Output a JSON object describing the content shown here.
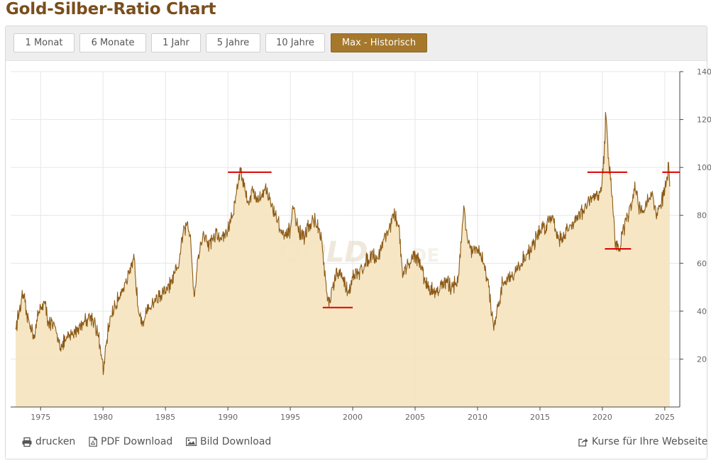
{
  "page": {
    "title": "Gold-Silber-Ratio Chart"
  },
  "toolbar": {
    "buttons": [
      {
        "label": "1 Monat",
        "active": false
      },
      {
        "label": "6 Monate",
        "active": false
      },
      {
        "label": "1 Jahr",
        "active": false
      },
      {
        "label": "5 Jahre",
        "active": false
      },
      {
        "label": "10 Jahre",
        "active": false
      },
      {
        "label": "Max - Historisch",
        "active": true
      }
    ]
  },
  "footer": {
    "print_label": "drucken",
    "pdf_label": "PDF Download",
    "image_label": "Bild Download",
    "embed_label": "Kurse für Ihre Webseite"
  },
  "watermark": {
    "text": "GOLD",
    "suffix": ".DE"
  },
  "colors": {
    "line": "#8b5a16",
    "fill": "#f5e4bf",
    "marker": "#dd0000",
    "active_button": "#a5782c",
    "title": "#7a4e1d"
  },
  "chart_data": {
    "type": "area",
    "title": "",
    "xlabel": "",
    "ylabel": "",
    "xlim": [
      1972.6,
      2026.2
    ],
    "ylim": [
      0,
      140
    ],
    "x_ticks": [
      1975,
      1980,
      1985,
      1990,
      1995,
      2000,
      2005,
      2010,
      2015,
      2020,
      2025
    ],
    "y_ticks": [
      20,
      40,
      60,
      80,
      100,
      120,
      140
    ],
    "y_axis_side": "right",
    "grid": true,
    "series": [
      {
        "name": "Gold-Silber-Ratio",
        "points": [
          [
            1973.0,
            33
          ],
          [
            1973.3,
            40
          ],
          [
            1973.6,
            47
          ],
          [
            1973.9,
            38
          ],
          [
            1974.2,
            34
          ],
          [
            1974.5,
            30
          ],
          [
            1974.8,
            38
          ],
          [
            1975.0,
            42
          ],
          [
            1975.3,
            44
          ],
          [
            1975.6,
            36
          ],
          [
            1976.0,
            34
          ],
          [
            1976.4,
            29
          ],
          [
            1976.7,
            25
          ],
          [
            1977.0,
            28
          ],
          [
            1977.5,
            30
          ],
          [
            1978.0,
            33
          ],
          [
            1978.5,
            36
          ],
          [
            1979.0,
            38
          ],
          [
            1979.3,
            36
          ],
          [
            1979.6,
            30
          ],
          [
            1979.9,
            20
          ],
          [
            1980.05,
            15
          ],
          [
            1980.3,
            28
          ],
          [
            1980.6,
            38
          ],
          [
            1981.0,
            42
          ],
          [
            1981.4,
            48
          ],
          [
            1981.8,
            52
          ],
          [
            1982.2,
            56
          ],
          [
            1982.5,
            62
          ],
          [
            1982.8,
            42
          ],
          [
            1983.2,
            36
          ],
          [
            1983.6,
            40
          ],
          [
            1984.0,
            44
          ],
          [
            1984.5,
            46
          ],
          [
            1985.0,
            48
          ],
          [
            1985.5,
            52
          ],
          [
            1986.0,
            58
          ],
          [
            1986.4,
            72
          ],
          [
            1986.7,
            76
          ],
          [
            1987.0,
            72
          ],
          [
            1987.3,
            46
          ],
          [
            1987.6,
            62
          ],
          [
            1988.0,
            72
          ],
          [
            1988.5,
            68
          ],
          [
            1989.0,
            72
          ],
          [
            1989.5,
            70
          ],
          [
            1990.0,
            74
          ],
          [
            1990.4,
            80
          ],
          [
            1990.7,
            90
          ],
          [
            1991.0,
            100
          ],
          [
            1991.3,
            92
          ],
          [
            1991.6,
            86
          ],
          [
            1992.0,
            90
          ],
          [
            1992.5,
            86
          ],
          [
            1993.0,
            92
          ],
          [
            1993.5,
            84
          ],
          [
            1994.0,
            78
          ],
          [
            1994.5,
            70
          ],
          [
            1995.0,
            74
          ],
          [
            1995.2,
            84
          ],
          [
            1995.5,
            76
          ],
          [
            1996.0,
            70
          ],
          [
            1996.5,
            76
          ],
          [
            1997.0,
            78
          ],
          [
            1997.5,
            70
          ],
          [
            1997.9,
            48
          ],
          [
            1998.1,
            42
          ],
          [
            1998.4,
            50
          ],
          [
            1998.8,
            56
          ],
          [
            1999.2,
            54
          ],
          [
            1999.6,
            48
          ],
          [
            2000.0,
            54
          ],
          [
            2000.5,
            56
          ],
          [
            2001.0,
            60
          ],
          [
            2001.5,
            64
          ],
          [
            2002.0,
            62
          ],
          [
            2002.5,
            70
          ],
          [
            2003.0,
            76
          ],
          [
            2003.3,
            80
          ],
          [
            2003.7,
            76
          ],
          [
            2004.0,
            54
          ],
          [
            2004.5,
            60
          ],
          [
            2005.0,
            64
          ],
          [
            2005.5,
            58
          ],
          [
            2006.0,
            50
          ],
          [
            2006.5,
            48
          ],
          [
            2007.0,
            50
          ],
          [
            2007.5,
            52
          ],
          [
            2008.0,
            50
          ],
          [
            2008.5,
            55
          ],
          [
            2008.9,
            84
          ],
          [
            2009.2,
            70
          ],
          [
            2009.6,
            64
          ],
          [
            2010.0,
            66
          ],
          [
            2010.5,
            60
          ],
          [
            2010.9,
            50
          ],
          [
            2011.3,
            32
          ],
          [
            2011.7,
            42
          ],
          [
            2012.0,
            52
          ],
          [
            2012.5,
            54
          ],
          [
            2013.0,
            56
          ],
          [
            2013.5,
            60
          ],
          [
            2014.0,
            64
          ],
          [
            2014.5,
            68
          ],
          [
            2015.0,
            74
          ],
          [
            2015.5,
            76
          ],
          [
            2016.0,
            80
          ],
          [
            2016.5,
            70
          ],
          [
            2017.0,
            72
          ],
          [
            2017.5,
            76
          ],
          [
            2018.0,
            80
          ],
          [
            2018.5,
            82
          ],
          [
            2019.0,
            86
          ],
          [
            2019.5,
            88
          ],
          [
            2019.9,
            90
          ],
          [
            2020.2,
            110
          ],
          [
            2020.25,
            123
          ],
          [
            2020.5,
            104
          ],
          [
            2020.8,
            88
          ],
          [
            2021.0,
            70
          ],
          [
            2021.3,
            65
          ],
          [
            2021.6,
            72
          ],
          [
            2022.0,
            80
          ],
          [
            2022.3,
            82
          ],
          [
            2022.6,
            94
          ],
          [
            2022.9,
            84
          ],
          [
            2023.3,
            82
          ],
          [
            2023.7,
            86
          ],
          [
            2024.0,
            90
          ],
          [
            2024.3,
            80
          ],
          [
            2024.6,
            84
          ],
          [
            2024.9,
            88
          ],
          [
            2025.2,
            96
          ],
          [
            2025.3,
            102
          ],
          [
            2025.4,
            92
          ]
        ]
      }
    ],
    "annotations": [
      {
        "type": "hline_segment",
        "y": 98,
        "x_start": 1990.0,
        "x_end": 1993.5
      },
      {
        "type": "hline_segment",
        "y": 41.5,
        "x_start": 1997.6,
        "x_end": 2000.0
      },
      {
        "type": "hline_segment",
        "y": 98,
        "x_start": 2018.8,
        "x_end": 2022.0
      },
      {
        "type": "hline_segment",
        "y": 66,
        "x_start": 2020.2,
        "x_end": 2022.3
      },
      {
        "type": "hline_segment",
        "y": 98,
        "x_start": 2024.8,
        "x_end": 2026.2
      }
    ]
  }
}
